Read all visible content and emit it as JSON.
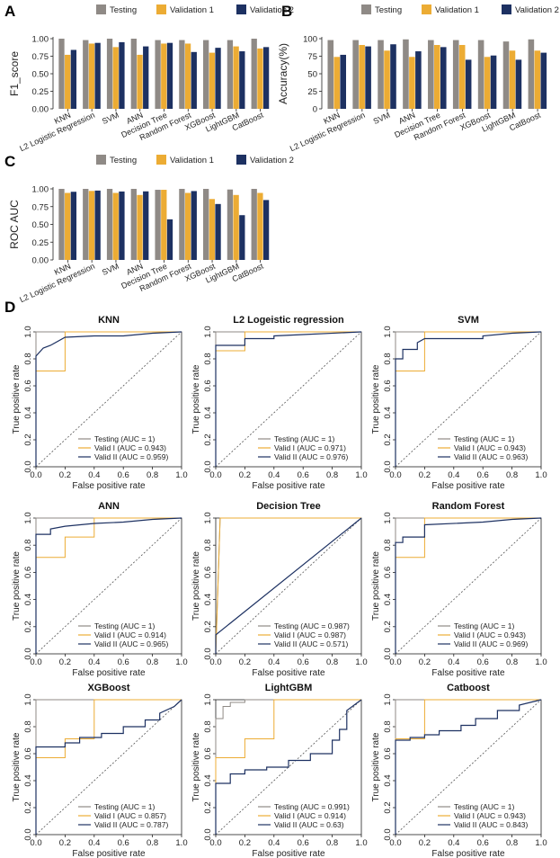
{
  "colors": {
    "testing": "#8f8a86",
    "valid1": "#ecac34",
    "valid2": "#1d3162",
    "axis": "#222222",
    "diag": "#555555"
  },
  "panel_labels": [
    "A",
    "B",
    "C",
    "D"
  ],
  "chart_data": [
    {
      "type": "bar",
      "panel": "A",
      "title": "",
      "ylabel": "F1_score",
      "ylim": [
        0,
        1
      ],
      "yticks": [
        "0.00",
        "0.25",
        "0.50",
        "0.75",
        "1.00"
      ],
      "legend": [
        "Testing",
        "Validation 1",
        "Validation 2"
      ],
      "categories": [
        "KNN",
        "L2 Logistic Regression",
        "SVM",
        "ANN",
        "Decision Tree",
        "Random Forest",
        "XGBoost",
        "LightGBM",
        "CatBoost"
      ],
      "series": [
        {
          "name": "Testing",
          "values": [
            1.0,
            0.98,
            1.0,
            1.0,
            0.98,
            0.98,
            0.98,
            0.98,
            1.0
          ]
        },
        {
          "name": "Validation 1",
          "values": [
            0.77,
            0.93,
            0.88,
            0.77,
            0.93,
            0.93,
            0.8,
            0.89,
            0.86
          ]
        },
        {
          "name": "Validation 2",
          "values": [
            0.84,
            0.94,
            0.95,
            0.89,
            0.94,
            0.81,
            0.87,
            0.82,
            0.88
          ]
        }
      ]
    },
    {
      "type": "bar",
      "panel": "B",
      "title": "",
      "ylabel": "Accuracy(%)",
      "ylim": [
        0,
        100
      ],
      "yticks": [
        "0",
        "25",
        "50",
        "75",
        "100"
      ],
      "legend": [
        "Testing",
        "Validation 1",
        "Validation 2"
      ],
      "categories": [
        "KNN",
        "L2 Logistic Regression",
        "SVM",
        "ANN",
        "Decision Tree",
        "Random Forest",
        "XGBoost",
        "LightGBM",
        "CatBoost"
      ],
      "series": [
        {
          "name": "Testing",
          "values": [
            98,
            98,
            98,
            99,
            98,
            98,
            98,
            96,
            99
          ]
        },
        {
          "name": "Validation 1",
          "values": [
            74,
            91,
            83,
            74,
            91,
            91,
            74,
            83,
            83
          ]
        },
        {
          "name": "Validation 2",
          "values": [
            77,
            89,
            92,
            82,
            88,
            70,
            76,
            70,
            80
          ]
        }
      ]
    },
    {
      "type": "bar",
      "panel": "C",
      "title": "",
      "ylabel": "ROC AUC",
      "ylim": [
        0,
        1
      ],
      "yticks": [
        "0.00",
        "0.25",
        "0.50",
        "0.75",
        "1.00"
      ],
      "legend": [
        "Testing",
        "Validation 1",
        "Validation 2"
      ],
      "categories": [
        "KNN",
        "L2 Logistic Regression",
        "SVM",
        "ANN",
        "Decision Tree",
        "Random Forest",
        "XGBoost",
        "LightGBM",
        "CatBoost"
      ],
      "series": [
        {
          "name": "Testing",
          "values": [
            1.0,
            1.0,
            1.0,
            1.0,
            0.987,
            1.0,
            1.0,
            0.991,
            1.0
          ]
        },
        {
          "name": "Validation 1",
          "values": [
            0.943,
            0.971,
            0.943,
            0.914,
            0.987,
            0.943,
            0.857,
            0.914,
            0.943
          ]
        },
        {
          "name": "Validation 2",
          "values": [
            0.959,
            0.976,
            0.963,
            0.965,
            0.571,
            0.969,
            0.787,
            0.63,
            0.843
          ]
        }
      ]
    },
    {
      "type": "line",
      "panel": "D",
      "title": "KNN",
      "xlabel": "False positive rate",
      "ylabel": "True positive rate",
      "xlim": [
        0,
        1
      ],
      "ylim": [
        0,
        1
      ],
      "xticks": [
        "0.0",
        "0.2",
        "0.4",
        "0.6",
        "0.8",
        "1.0"
      ],
      "yticks": [
        "0.0",
        "0.2",
        "0.4",
        "0.6",
        "0.8",
        "1.0"
      ],
      "legend": [
        "Testing (AUC = 1)",
        "Valid I (AUC = 0.943)",
        "Valid II (AUC = 0.959)"
      ],
      "series": [
        {
          "name": "Testing",
          "x": [
            0,
            0,
            0.03,
            1
          ],
          "y": [
            0,
            1,
            1,
            1
          ]
        },
        {
          "name": "Valid I",
          "x": [
            0,
            0,
            0.2,
            0.2,
            1
          ],
          "y": [
            0,
            0.71,
            0.71,
            1,
            1
          ]
        },
        {
          "name": "Valid II",
          "x": [
            0,
            0,
            0.05,
            0.1,
            0.2,
            0.4,
            0.6,
            0.8,
            1.0
          ],
          "y": [
            0,
            0.82,
            0.88,
            0.9,
            0.96,
            0.97,
            0.97,
            0.99,
            1.0
          ]
        }
      ]
    },
    {
      "type": "line",
      "panel": "D",
      "title": "L2 Logeistic regression",
      "xlabel": "False positive rate",
      "ylabel": "True positive rate",
      "xlim": [
        0,
        1
      ],
      "ylim": [
        0,
        1
      ],
      "xticks": [
        "0.0",
        "0.2",
        "0.4",
        "0.6",
        "0.8",
        "1.0"
      ],
      "yticks": [
        "0.0",
        "0.2",
        "0.4",
        "0.6",
        "0.8",
        "1.0"
      ],
      "legend": [
        "Testing (AUC = 1)",
        "Valid I (AUC = 0.971)",
        "Valid II (AUC = 0.976)"
      ],
      "series": [
        {
          "name": "Testing",
          "x": [
            0,
            0,
            0.03,
            1
          ],
          "y": [
            0,
            1,
            1,
            1
          ]
        },
        {
          "name": "Valid I",
          "x": [
            0,
            0,
            0.2,
            0.2,
            1
          ],
          "y": [
            0,
            0.86,
            0.86,
            1,
            1
          ]
        },
        {
          "name": "Valid II",
          "x": [
            0,
            0,
            0.2,
            0.2,
            0.4,
            0.4,
            0.6,
            1.0
          ],
          "y": [
            0,
            0.9,
            0.9,
            0.95,
            0.95,
            0.97,
            0.98,
            1.0
          ]
        }
      ]
    },
    {
      "type": "line",
      "panel": "D",
      "title": "SVM",
      "xlabel": "False positive rate",
      "ylabel": "True positive rate",
      "xlim": [
        0,
        1
      ],
      "ylim": [
        0,
        1
      ],
      "xticks": [
        "0.0",
        "0.2",
        "0.4",
        "0.6",
        "0.8",
        "1.0"
      ],
      "yticks": [
        "0.0",
        "0.2",
        "0.4",
        "0.6",
        "0.8",
        "1.0"
      ],
      "legend": [
        "Testing (AUC = 1)",
        "Valid I (AUC = 0.943)",
        "Valid II (AUC = 0.963)"
      ],
      "series": [
        {
          "name": "Testing",
          "x": [
            0,
            0,
            0.03,
            1
          ],
          "y": [
            0,
            1,
            1,
            1
          ]
        },
        {
          "name": "Valid I",
          "x": [
            0,
            0,
            0.2,
            0.2,
            1
          ],
          "y": [
            0,
            0.71,
            0.71,
            1,
            1
          ]
        },
        {
          "name": "Valid II",
          "x": [
            0,
            0,
            0.05,
            0.05,
            0.15,
            0.15,
            0.2,
            0.6,
            0.6,
            0.8,
            1.0
          ],
          "y": [
            0,
            0.8,
            0.8,
            0.87,
            0.87,
            0.92,
            0.95,
            0.95,
            0.97,
            0.99,
            1.0
          ]
        }
      ]
    },
    {
      "type": "line",
      "panel": "D",
      "title": "ANN",
      "xlabel": "False positive rate",
      "ylabel": "True positive rate",
      "xlim": [
        0,
        1
      ],
      "ylim": [
        0,
        1
      ],
      "xticks": [
        "0.0",
        "0.2",
        "0.4",
        "0.6",
        "0.8",
        "1.0"
      ],
      "yticks": [
        "0.0",
        "0.2",
        "0.4",
        "0.6",
        "0.8",
        "1.0"
      ],
      "legend": [
        "Testing (AUC = 1)",
        "Valid I (AUC = 0.914)",
        "Valid II (AUC = 0.965)"
      ],
      "series": [
        {
          "name": "Testing",
          "x": [
            0,
            0,
            0.03,
            1
          ],
          "y": [
            0,
            1,
            1,
            1
          ]
        },
        {
          "name": "Valid I",
          "x": [
            0,
            0,
            0.2,
            0.2,
            0.4,
            0.4,
            1
          ],
          "y": [
            0,
            0.71,
            0.71,
            0.86,
            0.86,
            1,
            1
          ]
        },
        {
          "name": "Valid II",
          "x": [
            0,
            0,
            0.1,
            0.1,
            0.2,
            0.4,
            0.6,
            0.8,
            1.0
          ],
          "y": [
            0,
            0.88,
            0.88,
            0.92,
            0.94,
            0.96,
            0.97,
            0.99,
            1.0
          ]
        }
      ]
    },
    {
      "type": "line",
      "panel": "D",
      "title": "Decision Tree",
      "xlabel": "False positive rate",
      "ylabel": "True positive rate",
      "xlim": [
        0,
        1
      ],
      "ylim": [
        0,
        1
      ],
      "xticks": [
        "0.0",
        "0.2",
        "0.4",
        "0.6",
        "0.8",
        "1.0"
      ],
      "yticks": [
        "0.0",
        "0.2",
        "0.4",
        "0.6",
        "0.8",
        "1.0"
      ],
      "legend": [
        "Testing (AUC = 0.987)",
        "Valid I (AUC = 0.987)",
        "Valid II (AUC = 0.571)"
      ],
      "series": [
        {
          "name": "Testing",
          "x": [
            0,
            0.03,
            1
          ],
          "y": [
            0,
            1,
            1
          ]
        },
        {
          "name": "Valid I",
          "x": [
            0,
            0.03,
            1
          ],
          "y": [
            0,
            1,
            1
          ]
        },
        {
          "name": "Valid II",
          "x": [
            0,
            0,
            1
          ],
          "y": [
            0,
            0.14,
            1
          ]
        }
      ]
    },
    {
      "type": "line",
      "panel": "D",
      "title": "Random Forest",
      "xlabel": "False positive rate",
      "ylabel": "True positive rate",
      "xlim": [
        0,
        1
      ],
      "ylim": [
        0,
        1
      ],
      "xticks": [
        "0.0",
        "0.2",
        "0.4",
        "0.6",
        "0.8",
        "1.0"
      ],
      "yticks": [
        "0.0",
        "0.2",
        "0.4",
        "0.6",
        "0.8",
        "1.0"
      ],
      "legend": [
        "Testing (AUC = 1)",
        "Valid I (AUC = 0.943)",
        "Valid II (AUC = 0.969)"
      ],
      "series": [
        {
          "name": "Testing",
          "x": [
            0,
            0,
            0.03,
            1
          ],
          "y": [
            0,
            1,
            1,
            1
          ]
        },
        {
          "name": "Valid I",
          "x": [
            0,
            0,
            0.2,
            0.2,
            1
          ],
          "y": [
            0,
            0.71,
            0.71,
            1,
            1
          ]
        },
        {
          "name": "Valid II",
          "x": [
            0,
            0,
            0.05,
            0.05,
            0.2,
            0.2,
            0.6,
            0.8,
            1.0
          ],
          "y": [
            0,
            0.82,
            0.82,
            0.86,
            0.86,
            0.95,
            0.97,
            0.99,
            1.0
          ]
        }
      ]
    },
    {
      "type": "line",
      "panel": "D",
      "title": "XGBoost",
      "xlabel": "False positive rate",
      "ylabel": "True positive rate",
      "xlim": [
        0,
        1
      ],
      "ylim": [
        0,
        1
      ],
      "xticks": [
        "0.0",
        "0.2",
        "0.4",
        "0.6",
        "0.8",
        "1.0"
      ],
      "yticks": [
        "0.0",
        "0.2",
        "0.4",
        "0.6",
        "0.8",
        "1.0"
      ],
      "legend": [
        "Testing (AUC = 1)",
        "Valid I (AUC = 0.857)",
        "Valid II (AUC = 0.787)"
      ],
      "series": [
        {
          "name": "Testing",
          "x": [
            0,
            0,
            0.03,
            1
          ],
          "y": [
            0,
            1,
            1,
            1
          ]
        },
        {
          "name": "Valid I",
          "x": [
            0,
            0,
            0.2,
            0.2,
            0.4,
            0.4,
            1
          ],
          "y": [
            0,
            0.57,
            0.57,
            0.71,
            0.71,
            1,
            1
          ]
        },
        {
          "name": "Valid II",
          "x": [
            0,
            0,
            0.2,
            0.2,
            0.3,
            0.3,
            0.45,
            0.45,
            0.6,
            0.6,
            0.75,
            0.75,
            0.85,
            0.85,
            0.95,
            1.0
          ],
          "y": [
            0,
            0.65,
            0.65,
            0.68,
            0.68,
            0.72,
            0.72,
            0.75,
            0.75,
            0.8,
            0.8,
            0.85,
            0.85,
            0.9,
            0.95,
            1.0
          ]
        }
      ]
    },
    {
      "type": "line",
      "panel": "D",
      "title": "LightGBM",
      "xlabel": "False positive rate",
      "ylabel": "True positive rate",
      "xlim": [
        0,
        1
      ],
      "ylim": [
        0,
        1
      ],
      "xticks": [
        "0.0",
        "0.2",
        "0.4",
        "0.6",
        "0.8",
        "1.0"
      ],
      "yticks": [
        "0.0",
        "0.2",
        "0.4",
        "0.6",
        "0.8",
        "1.0"
      ],
      "legend": [
        "Testing (AUC = 0.991)",
        "Valid I (AUC = 0.914)",
        "Valid II (AUC = 0.63)"
      ],
      "series": [
        {
          "name": "Testing",
          "x": [
            0,
            0,
            0.05,
            0.05,
            0.1,
            0.1,
            0.2,
            0.2,
            1.0
          ],
          "y": [
            0,
            0.86,
            0.86,
            0.95,
            0.95,
            0.98,
            0.98,
            1,
            1
          ]
        },
        {
          "name": "Valid I",
          "x": [
            0,
            0,
            0.2,
            0.2,
            0.4,
            0.4,
            1
          ],
          "y": [
            0,
            0.57,
            0.57,
            0.71,
            0.71,
            1,
            1
          ]
        },
        {
          "name": "Valid II",
          "x": [
            0,
            0,
            0.1,
            0.1,
            0.2,
            0.2,
            0.35,
            0.35,
            0.5,
            0.5,
            0.65,
            0.65,
            0.8,
            0.8,
            0.85,
            0.85,
            0.9,
            0.9,
            1.0
          ],
          "y": [
            0,
            0.38,
            0.38,
            0.45,
            0.45,
            0.48,
            0.48,
            0.5,
            0.5,
            0.55,
            0.55,
            0.6,
            0.6,
            0.7,
            0.7,
            0.78,
            0.78,
            0.92,
            1.0
          ]
        }
      ]
    },
    {
      "type": "line",
      "panel": "D",
      "title": "Catboost",
      "xlabel": "False positive rate",
      "ylabel": "True positive rate",
      "xlim": [
        0,
        1
      ],
      "ylim": [
        0,
        1
      ],
      "xticks": [
        "0.0",
        "0.2",
        "0.4",
        "0.6",
        "0.8",
        "1.0"
      ],
      "yticks": [
        "0.0",
        "0.2",
        "0.4",
        "0.6",
        "0.8",
        "1.0"
      ],
      "legend": [
        "Testing (AUC = 1)",
        "Valid I (AUC = 0.943)",
        "Valid II (AUC = 0.843)"
      ],
      "series": [
        {
          "name": "Testing",
          "x": [
            0,
            0,
            0.03,
            1
          ],
          "y": [
            0,
            1,
            1,
            1
          ]
        },
        {
          "name": "Valid I",
          "x": [
            0,
            0,
            0.2,
            0.2,
            1
          ],
          "y": [
            0,
            0.71,
            0.71,
            1,
            1
          ]
        },
        {
          "name": "Valid II",
          "x": [
            0,
            0,
            0.1,
            0.1,
            0.2,
            0.2,
            0.3,
            0.3,
            0.45,
            0.45,
            0.55,
            0.55,
            0.7,
            0.7,
            0.85,
            0.85,
            1.0
          ],
          "y": [
            0,
            0.7,
            0.7,
            0.72,
            0.72,
            0.74,
            0.74,
            0.77,
            0.77,
            0.81,
            0.81,
            0.86,
            0.86,
            0.92,
            0.92,
            0.96,
            1.0
          ]
        }
      ]
    }
  ]
}
